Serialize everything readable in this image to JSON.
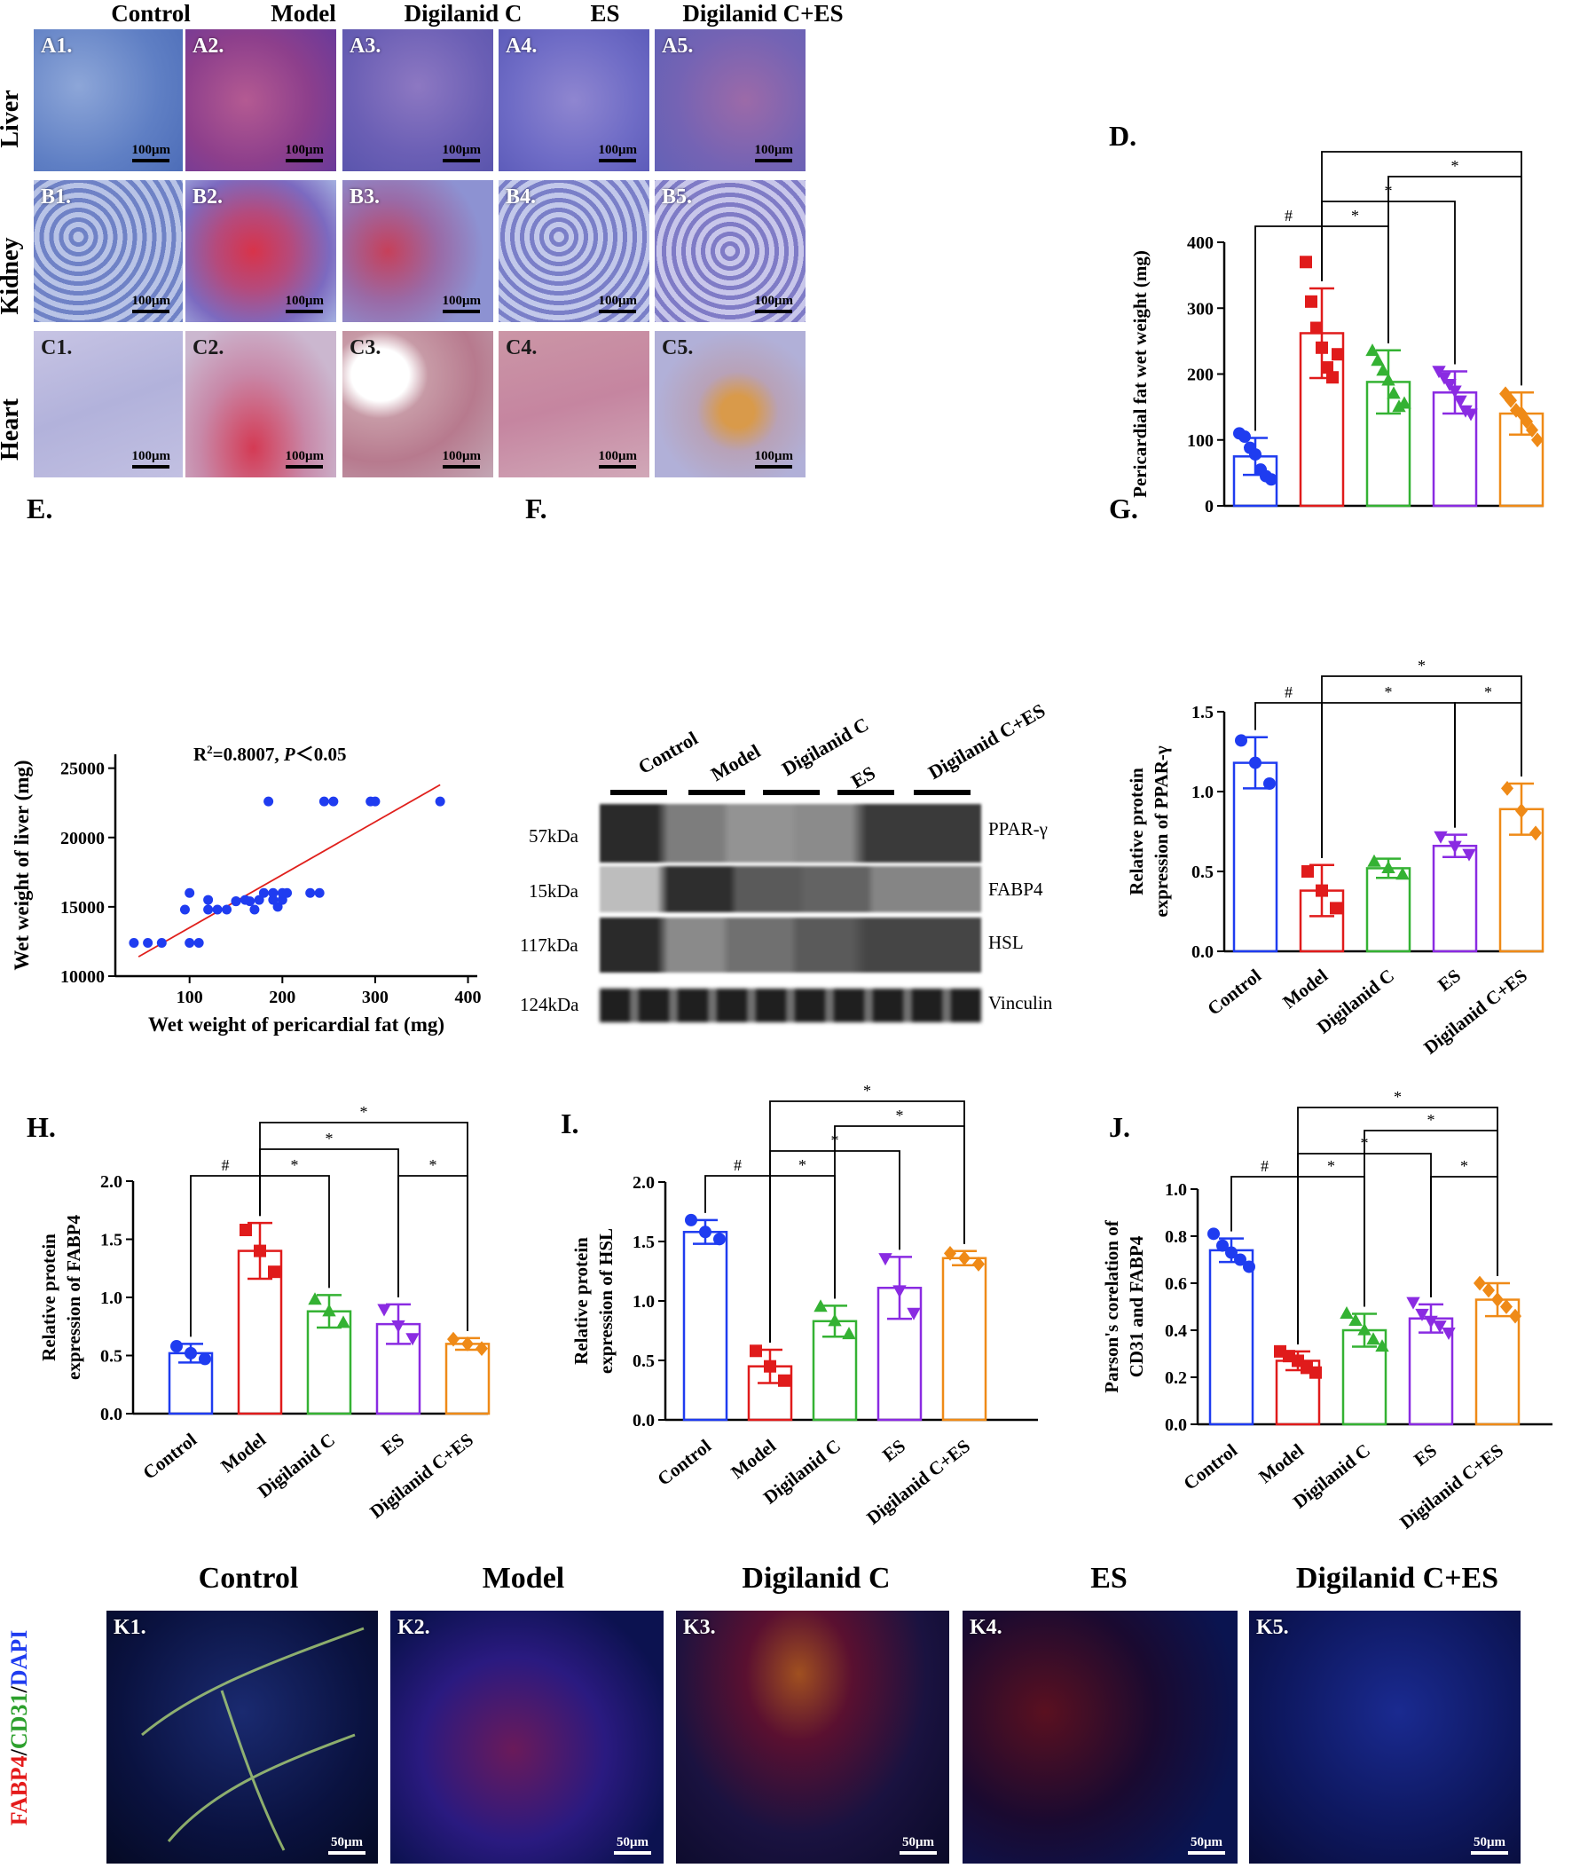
{
  "histology": {
    "columns": [
      "Control",
      "Model",
      "Digilanid C",
      "ES",
      "Digilanid C+ES"
    ],
    "rows": [
      {
        "name": "Liver",
        "labels": [
          "A1.",
          "A2.",
          "A3.",
          "A4.",
          "A5."
        ]
      },
      {
        "name": "Kidney",
        "labels": [
          "B1.",
          "B2.",
          "B3.",
          "B4.",
          "B5."
        ]
      },
      {
        "name": "Heart",
        "labels": [
          "C1.",
          "C2.",
          "C3.",
          "C4.",
          "C5."
        ]
      }
    ],
    "scale": "100μm"
  },
  "panelD": {
    "letter": "D."
  },
  "panelE": {
    "letter": "E.",
    "annotation_main": "R",
    "annotation_sup": "2",
    "annotation_mid": "=0.8007, ",
    "annotation_p": "P",
    "annotation_tail": "＜0.05"
  },
  "panelF": {
    "letter": "F.",
    "groups": [
      "Control",
      "Model",
      "Digilanid C",
      "ES",
      "Digilanid C+ES"
    ],
    "bands": [
      {
        "kda": "57kDa",
        "protein": "PPAR-γ"
      },
      {
        "kda": "15kDa",
        "protein": "FABP4"
      },
      {
        "kda": "117kDa",
        "protein": "HSL"
      },
      {
        "kda": "124kDa",
        "protein": "Vinculin"
      }
    ]
  },
  "panelG": {
    "letter": "G."
  },
  "panelH": {
    "letter": "H."
  },
  "panelI": {
    "letter": "I."
  },
  "panelJ": {
    "letter": "J."
  },
  "panelK": {
    "columns": [
      "Control",
      "Model",
      "Digilanid C",
      "ES",
      "Digilanid C+ES"
    ],
    "labels": [
      "K1.",
      "K2.",
      "K3.",
      "K4.",
      "K5."
    ],
    "scale": "50μm",
    "stain": {
      "red": "FABP4",
      "slash1": "/",
      "green": "CD31",
      "slash2": "/",
      "blue": "DAPI"
    }
  },
  "colors": {
    "Control": "#1f3cf0",
    "Model": "#e01b1b",
    "Digilanid C": "#34b233",
    "ES": "#8a2be2",
    "Digilanid C+ES": "#ef8a17"
  },
  "chart_data": [
    {
      "id": "D",
      "type": "bar",
      "categories": [
        "Control",
        "Model",
        "Digilanid C",
        "ES",
        "Digilanid C+ES"
      ],
      "values": [
        75,
        262,
        188,
        172,
        140
      ],
      "errors": [
        28,
        68,
        48,
        32,
        32
      ],
      "points": [
        [
          110,
          105,
          88,
          78,
          55,
          45,
          40
        ],
        [
          370,
          310,
          270,
          240,
          210,
          195,
          230
        ],
        [
          235,
          220,
          205,
          190,
          170,
          150,
          155
        ],
        [
          205,
          195,
          185,
          175,
          160,
          145,
          140
        ],
        [
          170,
          160,
          145,
          140,
          128,
          115,
          100
        ]
      ],
      "markers": [
        "circle",
        "square",
        "triangle-up",
        "triangle-down",
        "diamond"
      ],
      "ylabel": "Pericardial fat wet weight (mg)",
      "ylim": [
        0,
        400
      ],
      "yticks": [
        0,
        100,
        200,
        300,
        400
      ],
      "yticklabels": [
        "0",
        "100",
        "200",
        "300",
        "400"
      ],
      "sig": [
        {
          "from": 0,
          "to": 1,
          "level": 1,
          "label": "#"
        },
        {
          "from": 1,
          "to": 2,
          "level": 1,
          "label": "*"
        },
        {
          "from": 1,
          "to": 3,
          "level": 2,
          "label": "*"
        },
        {
          "from": 2,
          "to": 4,
          "level": 3,
          "label": "*"
        },
        {
          "from": 1,
          "to": 4,
          "level": 4,
          "label": "*"
        }
      ]
    },
    {
      "id": "E",
      "type": "scatter",
      "x": [
        40,
        55,
        70,
        95,
        100,
        100,
        110,
        120,
        120,
        130,
        140,
        150,
        150,
        160,
        165,
        170,
        175,
        180,
        185,
        190,
        190,
        195,
        200,
        200,
        205,
        230,
        240,
        245,
        255,
        295,
        300,
        370
      ],
      "y": [
        12400,
        12400,
        12400,
        14800,
        12400,
        16000,
        12400,
        14800,
        15500,
        14800,
        14800,
        15400,
        15400,
        15500,
        15400,
        14800,
        15500,
        16000,
        22600,
        15500,
        16000,
        15000,
        15500,
        16000,
        16000,
        16000,
        16000,
        22600,
        22600,
        22600,
        22600,
        22600
      ],
      "fit": {
        "x1": 45,
        "y1": 11400,
        "x2": 370,
        "y2": 23800
      },
      "xlabel": "Wet weight of pericardial fat (mg)",
      "ylabel": "Wet weight  of liver (mg)",
      "xlim": [
        20,
        410
      ],
      "ylim": [
        10000,
        26000
      ],
      "xticks": [
        100,
        200,
        300,
        400
      ],
      "xticklabels": [
        "100",
        "200",
        "300",
        "400"
      ],
      "yticks": [
        10000,
        15000,
        20000,
        25000
      ],
      "yticklabels": [
        "10000",
        "15000",
        "20000",
        "25000"
      ]
    },
    {
      "id": "G",
      "type": "bar",
      "categories": [
        "Control",
        "Model",
        "Digilanid C",
        "ES",
        "Digilanid C+ES"
      ],
      "values": [
        1.18,
        0.38,
        0.52,
        0.66,
        0.89
      ],
      "errors": [
        0.16,
        0.16,
        0.06,
        0.07,
        0.16
      ],
      "points": [
        [
          1.32,
          1.18,
          1.05
        ],
        [
          0.5,
          0.38,
          0.27
        ],
        [
          0.56,
          0.52,
          0.48
        ],
        [
          0.72,
          0.66,
          0.61
        ],
        [
          1.02,
          0.88,
          0.74
        ]
      ],
      "markers": [
        "circle",
        "square",
        "triangle-up",
        "triangle-down",
        "diamond"
      ],
      "ylabel": [
        "Relative protein",
        "expression of PPAR-γ"
      ],
      "ylim": [
        0,
        1.5
      ],
      "yticks": [
        0,
        0.5,
        1.0,
        1.5
      ],
      "yticklabels": [
        "0.0",
        "0.5",
        "1.0",
        "1.5"
      ],
      "sig": [
        {
          "from": 0,
          "to": 1,
          "level": 1,
          "label": "#"
        },
        {
          "from": 1,
          "to": 3,
          "level": 1,
          "label": "*"
        },
        {
          "from": 3,
          "to": 4,
          "level": 1,
          "label": "*"
        },
        {
          "from": 1,
          "to": 4,
          "level": 2,
          "label": "*"
        }
      ]
    },
    {
      "id": "H",
      "type": "bar",
      "categories": [
        "Control",
        "Model",
        "Digilanid C",
        "ES",
        "Digilanid C+ES"
      ],
      "values": [
        0.52,
        1.4,
        0.88,
        0.77,
        0.6
      ],
      "errors": [
        0.08,
        0.24,
        0.14,
        0.17,
        0.05
      ],
      "points": [
        [
          0.58,
          0.52,
          0.47
        ],
        [
          1.58,
          1.4,
          1.22
        ],
        [
          0.98,
          0.88,
          0.78
        ],
        [
          0.9,
          0.76,
          0.65
        ],
        [
          0.64,
          0.6,
          0.56
        ]
      ],
      "markers": [
        "circle",
        "square",
        "triangle-up",
        "triangle-down",
        "diamond"
      ],
      "ylabel": [
        "Relative protein",
        "expression of FABP4"
      ],
      "ylim": [
        0,
        2.0
      ],
      "yticks": [
        0,
        0.5,
        1.0,
        1.5,
        2.0
      ],
      "yticklabels": [
        "0.0",
        "0.5",
        "1.0",
        "1.5",
        "2.0"
      ],
      "sig": [
        {
          "from": 0,
          "to": 1,
          "level": 1,
          "label": "#"
        },
        {
          "from": 1,
          "to": 2,
          "level": 1,
          "label": "*"
        },
        {
          "from": 3,
          "to": 4,
          "level": 1,
          "label": "*"
        },
        {
          "from": 1,
          "to": 3,
          "level": 2,
          "label": "*"
        },
        {
          "from": 1,
          "to": 4,
          "level": 3,
          "label": "*"
        }
      ]
    },
    {
      "id": "I",
      "type": "bar",
      "categories": [
        "Control",
        "Model",
        "Digilanid C",
        "ES",
        "Digilanid C+ES"
      ],
      "values": [
        1.58,
        0.45,
        0.83,
        1.11,
        1.36
      ],
      "errors": [
        0.1,
        0.14,
        0.13,
        0.26,
        0.06
      ],
      "points": [
        [
          1.68,
          1.58,
          1.52
        ],
        [
          0.58,
          0.45,
          0.33
        ],
        [
          0.95,
          0.83,
          0.72
        ],
        [
          1.36,
          1.09,
          0.9
        ],
        [
          1.4,
          1.36,
          1.31
        ]
      ],
      "markers": [
        "circle",
        "square",
        "triangle-up",
        "triangle-down",
        "diamond"
      ],
      "ylabel": [
        "Relative protein",
        "expression of HSL"
      ],
      "ylim": [
        0,
        2.0
      ],
      "yticks": [
        0,
        0.5,
        1.0,
        1.5,
        2.0
      ],
      "yticklabels": [
        "0.0",
        "0.5",
        "1.0",
        "1.5",
        "2.0"
      ],
      "sig": [
        {
          "from": 0,
          "to": 1,
          "level": 1,
          "label": "#"
        },
        {
          "from": 1,
          "to": 2,
          "level": 1,
          "label": "*"
        },
        {
          "from": 1,
          "to": 3,
          "level": 2,
          "label": "*"
        },
        {
          "from": 2,
          "to": 4,
          "level": 3,
          "label": "*"
        },
        {
          "from": 1,
          "to": 4,
          "level": 4,
          "label": "*"
        }
      ]
    },
    {
      "id": "J",
      "type": "bar",
      "categories": [
        "Control",
        "Model",
        "Digilanid C",
        "ES",
        "Digilanid C+ES"
      ],
      "values": [
        0.74,
        0.27,
        0.4,
        0.45,
        0.53
      ],
      "errors": [
        0.05,
        0.04,
        0.07,
        0.06,
        0.07
      ],
      "points": [
        [
          0.81,
          0.76,
          0.73,
          0.7,
          0.67
        ],
        [
          0.31,
          0.29,
          0.27,
          0.24,
          0.22
        ],
        [
          0.47,
          0.44,
          0.4,
          0.36,
          0.33
        ],
        [
          0.52,
          0.47,
          0.44,
          0.42,
          0.39
        ],
        [
          0.6,
          0.57,
          0.53,
          0.5,
          0.46
        ]
      ],
      "markers": [
        "circle",
        "square",
        "triangle-up",
        "triangle-down",
        "diamond"
      ],
      "ylabel": [
        "Parson's corelation of",
        "CD31 and FABP4"
      ],
      "ylim": [
        0,
        1.0
      ],
      "yticks": [
        0,
        0.2,
        0.4,
        0.6,
        0.8,
        1.0
      ],
      "yticklabels": [
        "0.0",
        "0.2",
        "0.4",
        "0.6",
        "0.8",
        "1.0"
      ],
      "sig": [
        {
          "from": 0,
          "to": 1,
          "level": 1,
          "label": "#"
        },
        {
          "from": 1,
          "to": 2,
          "level": 1,
          "label": "*"
        },
        {
          "from": 3,
          "to": 4,
          "level": 1,
          "label": "*"
        },
        {
          "from": 1,
          "to": 3,
          "level": 2,
          "label": "*"
        },
        {
          "from": 2,
          "to": 4,
          "level": 3,
          "label": "*"
        },
        {
          "from": 1,
          "to": 4,
          "level": 4,
          "label": "*"
        }
      ]
    }
  ]
}
